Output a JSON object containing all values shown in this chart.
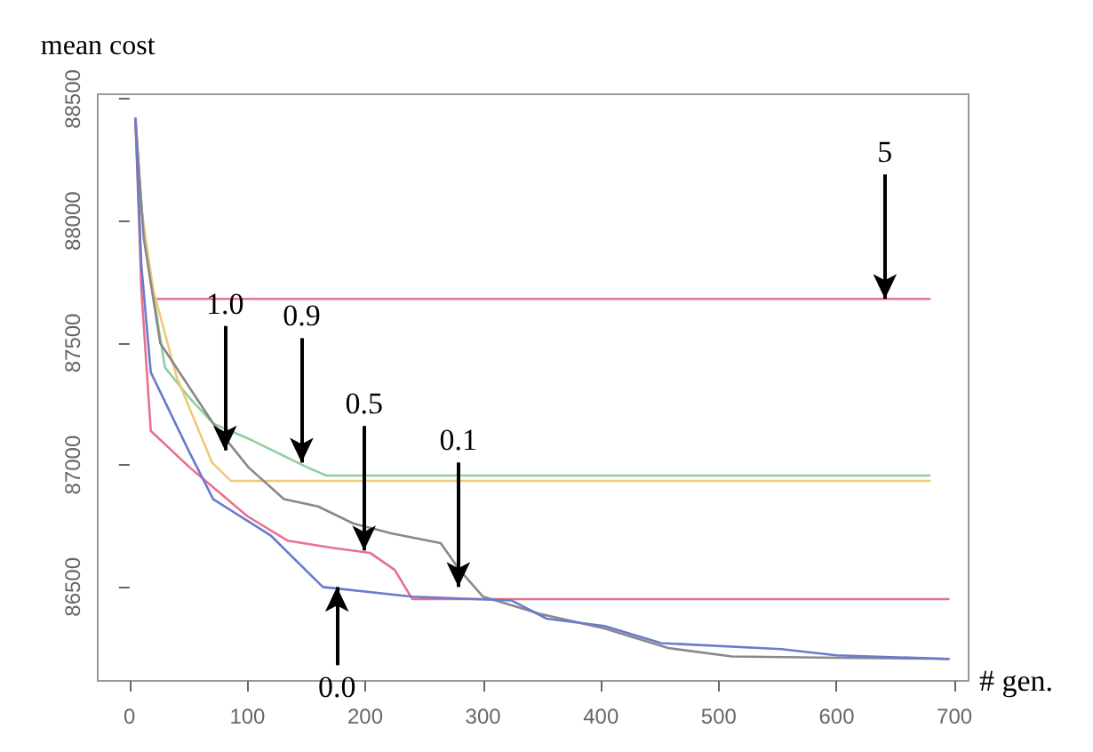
{
  "chart_data": {
    "type": "line",
    "xlabel": "# gen.",
    "ylabel": "mean cost",
    "xlim": [
      -27,
      712
    ],
    "ylim": [
      86115,
      88520
    ],
    "xticks": [
      0,
      100,
      200,
      300,
      400,
      500,
      600,
      700
    ],
    "yticks": [
      86500,
      87000,
      87500,
      88000,
      88500
    ],
    "grid": false,
    "marker": "none",
    "line_style": "solid",
    "series": [
      {
        "color": "#e07a90",
        "x": [
          5,
          10,
          15,
          21,
          679
        ],
        "values": [
          88420,
          88050,
          87850,
          87681,
          87681
        ]
      },
      {
        "color": "#90d0a0",
        "x": [
          5,
          12,
          30,
          50,
          71,
          100,
          151,
          167,
          679
        ],
        "values": [
          88380,
          87950,
          87400,
          87280,
          87170,
          87110,
          86990,
          86957,
          86957
        ]
      },
      {
        "color": "#f0c878",
        "x": [
          5,
          10,
          20,
          40,
          70,
          86,
          679
        ],
        "values": [
          88420,
          88050,
          87720,
          87360,
          87010,
          86935,
          86935
        ]
      },
      {
        "color": "#e8708c",
        "x": [
          5,
          10,
          18,
          51,
          100,
          134,
          173,
          204,
          225,
          240,
          695
        ],
        "values": [
          88420,
          87720,
          87140,
          86990,
          86790,
          86690,
          86660,
          86640,
          86570,
          86450,
          86450
        ]
      },
      {
        "color": "#888888",
        "x": [
          5,
          12,
          26,
          71,
          101,
          131,
          160,
          190,
          222,
          264,
          280,
          300,
          348,
          403,
          457,
          511,
          600,
          695
        ],
        "values": [
          88420,
          87930,
          87500,
          87170,
          86990,
          86860,
          86830,
          86760,
          86720,
          86680,
          86570,
          86460,
          86390,
          86330,
          86250,
          86215,
          86210,
          86205
        ]
      },
      {
        "color": "#6a7acc",
        "x": [
          5,
          10,
          18,
          51,
          71,
          120,
          164,
          240,
          324,
          354,
          403,
          451,
          553,
          600,
          695
        ],
        "values": [
          88420,
          87820,
          87380,
          87050,
          86860,
          86710,
          86500,
          86460,
          86445,
          86370,
          86340,
          86270,
          86245,
          86220,
          86205
        ]
      }
    ],
    "annotations": [
      {
        "text": "1.0",
        "x": 81,
        "y": 87060
      },
      {
        "text": "0.9",
        "x": 146,
        "y": 87010
      },
      {
        "text": "0.5",
        "x": 199,
        "y": 86650
      },
      {
        "text": "0.1",
        "x": 279,
        "y": 86500
      },
      {
        "text": "0.0",
        "x": 176,
        "y": 86500
      },
      {
        "text": "5",
        "x": 641,
        "y": 87681
      }
    ]
  }
}
